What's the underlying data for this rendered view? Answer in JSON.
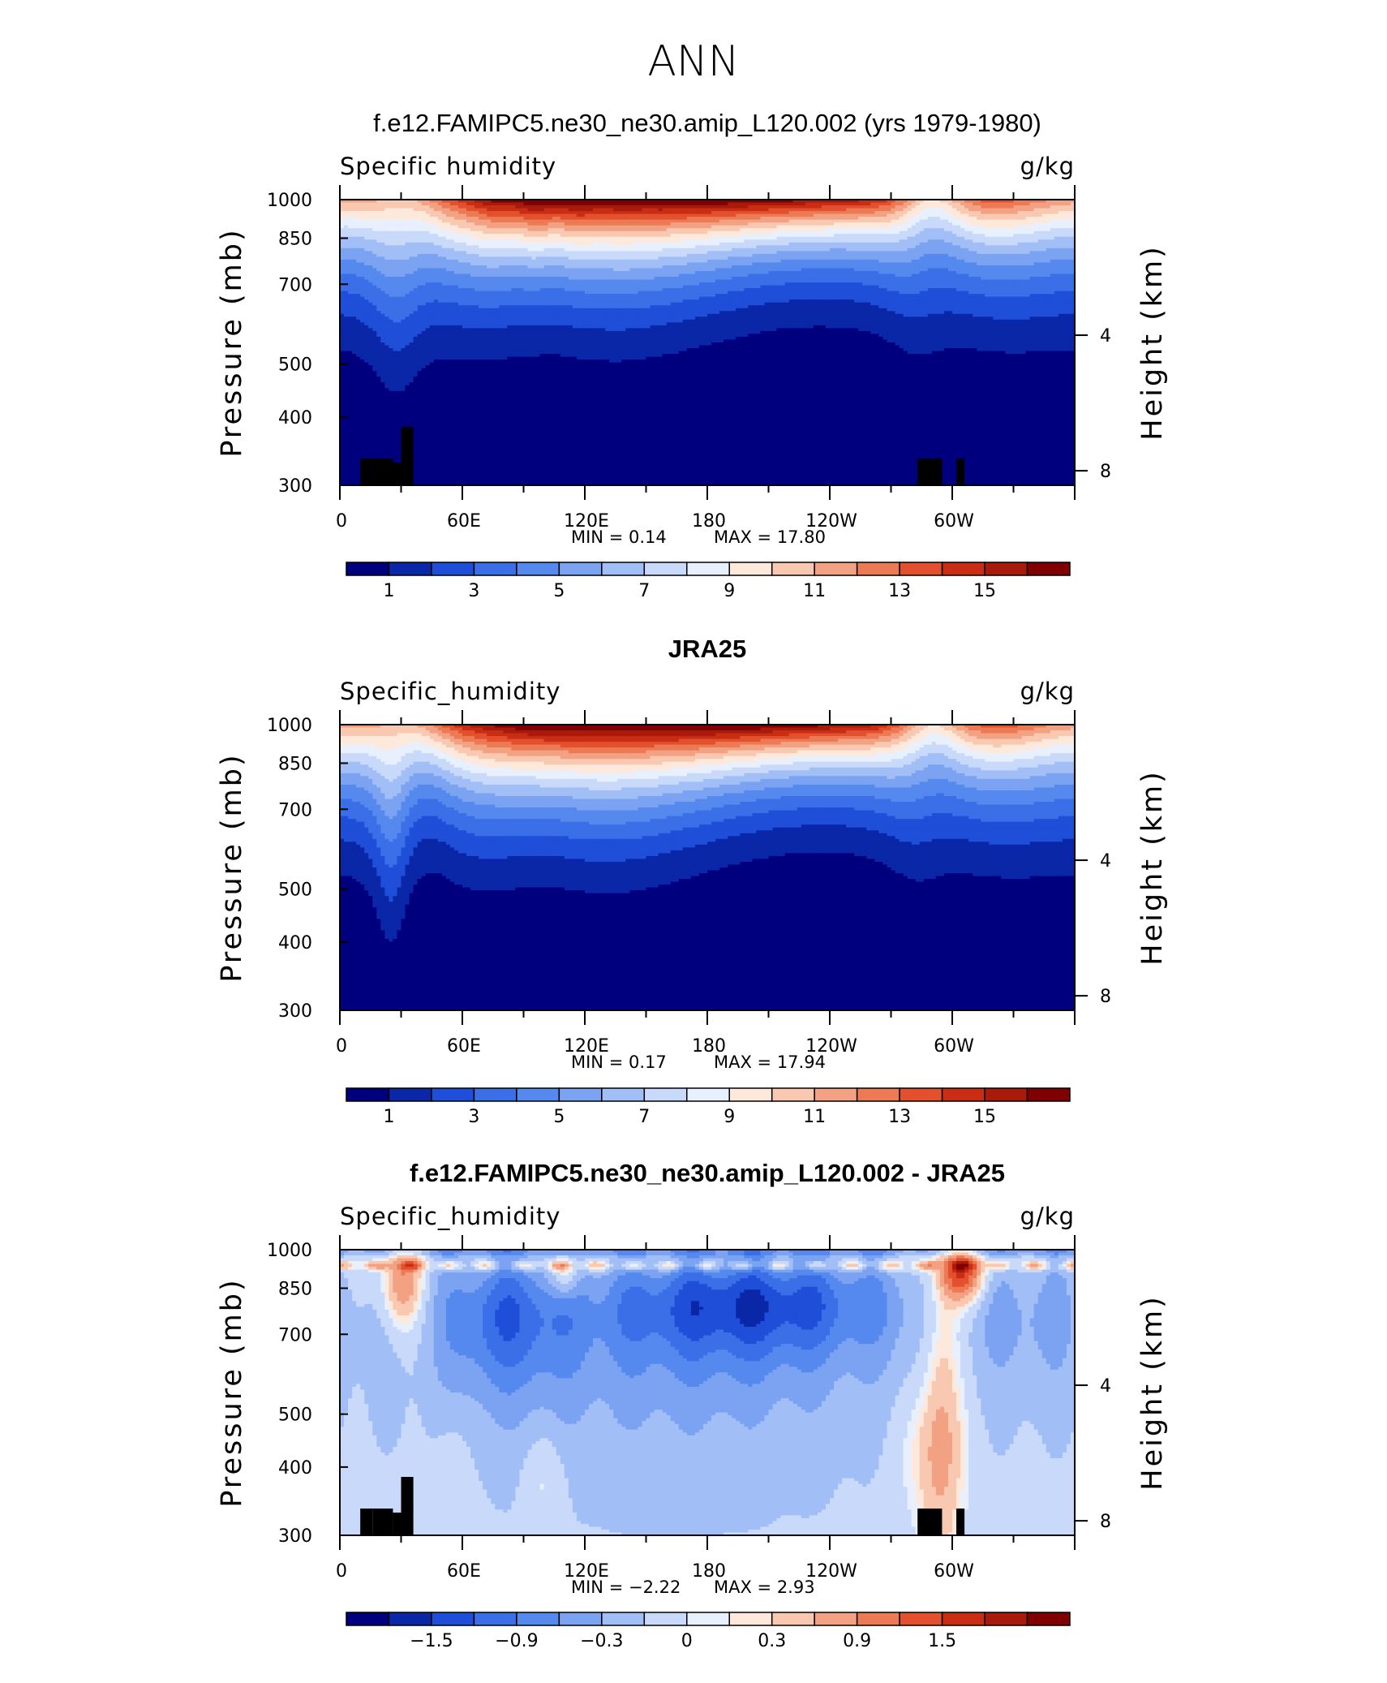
{
  "figure_title": "ANN",
  "chart_data": [
    {
      "type": "heatmap",
      "title": "f.e12.FAMIPC5.ne30_ne30.amip_L120.002 (yrs 1979-1980)",
      "left_string": "Specific  humidity",
      "right_string": "g/kg",
      "ylabel": "Pressure  (mb)",
      "ylabel_right": "Height  (km)",
      "y_ticks": [
        "300",
        "400",
        "500",
        "700",
        "850",
        "1000"
      ],
      "y_tick_values": [
        300,
        400,
        500,
        700,
        850,
        1000
      ],
      "y_right_ticks": [
        "8",
        "4"
      ],
      "y_right_tick_values": [
        8,
        4
      ],
      "x_ticks": [
        "0",
        "60E",
        "120E",
        "180",
        "120W",
        "60W"
      ],
      "x_tick_values": [
        0,
        60,
        120,
        180,
        240,
        300
      ],
      "xlim": [
        0,
        360
      ],
      "ylim": [
        1000,
        300
      ],
      "min_text": "MIN =     0.14",
      "max_text": "MAX =    17.80",
      "min": 0.14,
      "max": 17.8,
      "field": "full",
      "colorbar": {
        "labels": [
          "1",
          "3",
          "5",
          "7",
          "9",
          "11",
          "13",
          "15"
        ],
        "levels": [
          0,
          1,
          2,
          3,
          4,
          5,
          6,
          7,
          8,
          9,
          10,
          11,
          12,
          13,
          14,
          15,
          16
        ]
      }
    },
    {
      "type": "heatmap",
      "title": "JRA25",
      "left_string": "Specific_humidity",
      "right_string": "g/kg",
      "ylabel": "Pressure  (mb)",
      "ylabel_right": "Height  (km)",
      "y_ticks": [
        "300",
        "400",
        "500",
        "700",
        "850",
        "1000"
      ],
      "y_tick_values": [
        300,
        400,
        500,
        700,
        850,
        1000
      ],
      "y_right_ticks": [
        "8",
        "4"
      ],
      "y_right_tick_values": [
        8,
        4
      ],
      "x_ticks": [
        "0",
        "60E",
        "120E",
        "180",
        "120W",
        "60W"
      ],
      "x_tick_values": [
        0,
        60,
        120,
        180,
        240,
        300
      ],
      "xlim": [
        0,
        360
      ],
      "ylim": [
        1000,
        300
      ],
      "min_text": "MIN =     0.17",
      "max_text": "MAX =    17.94",
      "min": 0.17,
      "max": 17.94,
      "field": "full",
      "colorbar": {
        "labels": [
          "1",
          "3",
          "5",
          "7",
          "9",
          "11",
          "13",
          "15"
        ],
        "levels": [
          0,
          1,
          2,
          3,
          4,
          5,
          6,
          7,
          8,
          9,
          10,
          11,
          12,
          13,
          14,
          15,
          16
        ]
      }
    },
    {
      "type": "heatmap",
      "title": "f.e12.FAMIPC5.ne30_ne30.amip_L120.002 - JRA25",
      "left_string": "Specific_humidity",
      "right_string": "g/kg",
      "ylabel": "Pressure  (mb)",
      "ylabel_right": "Height  (km)",
      "y_ticks": [
        "300",
        "400",
        "500",
        "700",
        "850",
        "1000"
      ],
      "y_tick_values": [
        300,
        400,
        500,
        700,
        850,
        1000
      ],
      "y_right_ticks": [
        "8",
        "4"
      ],
      "y_right_tick_values": [
        8,
        4
      ],
      "x_ticks": [
        "0",
        "60E",
        "120E",
        "180",
        "120W",
        "60W"
      ],
      "x_tick_values": [
        0,
        60,
        120,
        180,
        240,
        300
      ],
      "xlim": [
        0,
        360
      ],
      "ylim": [
        1000,
        300
      ],
      "min_text": "MIN =    −2.22",
      "max_text": "MAX =     2.93",
      "min": -2.22,
      "max": 2.93,
      "field": "diff",
      "colorbar": {
        "labels": [
          "−1.5",
          "−0.9",
          "−0.3",
          "0",
          "0.3",
          "0.9",
          "1.5"
        ],
        "levels": [
          -2.4,
          -2.1,
          -1.8,
          -1.5,
          -1.2,
          -0.9,
          -0.6,
          -0.3,
          0,
          0.15,
          0.3,
          0.6,
          0.9,
          1.2,
          1.5,
          1.8,
          2.1
        ]
      }
    }
  ],
  "palette": [
    "#00007f",
    "#0a27a8",
    "#1f4fd8",
    "#3a6fe8",
    "#5589ee",
    "#7ba3f2",
    "#a2bef6",
    "#c8d9fa",
    "#e8f0fd",
    "#fde9dc",
    "#f8c8b0",
    "#f2a183",
    "#eb7a55",
    "#e2502d",
    "#c92d14",
    "#a81a0a",
    "#800000"
  ]
}
